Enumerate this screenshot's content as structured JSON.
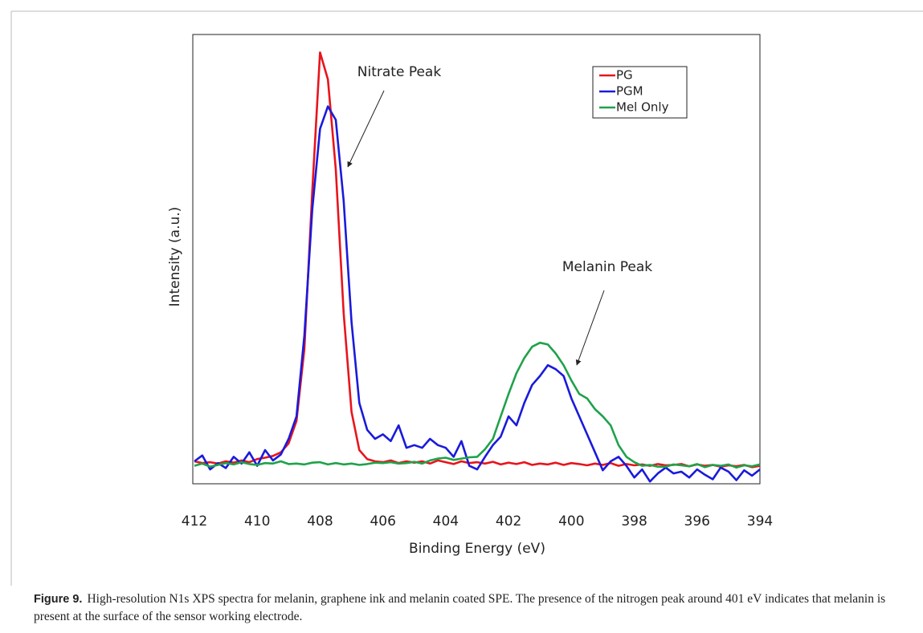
{
  "chart_data": {
    "type": "line",
    "xlabel": "Binding Energy (eV)",
    "ylabel": "Intensity (a.u.)",
    "annotations": [
      "Nitrate Peak",
      "Melanin Peak"
    ],
    "xlim": [
      412,
      394
    ],
    "xticks": [
      412,
      410,
      408,
      406,
      404,
      402,
      400,
      398,
      396,
      394
    ],
    "ylim": [
      0,
      100
    ],
    "legend": "upper right",
    "x": [
      412,
      411.75,
      411.5,
      411.25,
      411,
      410.75,
      410.5,
      410.25,
      410,
      409.75,
      409.5,
      409.25,
      409,
      408.75,
      408.5,
      408.25,
      408,
      407.75,
      407.5,
      407.25,
      407,
      406.75,
      406.5,
      406.25,
      406,
      405.75,
      405.5,
      405.25,
      405,
      404.75,
      404.5,
      404.25,
      404,
      403.75,
      403.5,
      403.25,
      403,
      402.75,
      402.5,
      402.25,
      402,
      401.75,
      401.5,
      401.25,
      401,
      400.75,
      400.5,
      400.25,
      400,
      399.75,
      399.5,
      399.25,
      399,
      398.75,
      398.5,
      398.25,
      398,
      397.75,
      397.5,
      397.25,
      397,
      396.75,
      396.5,
      396.25,
      396,
      395.75,
      395.5,
      395.25,
      395,
      394.75,
      394.5,
      394.25,
      394
    ],
    "series": [
      {
        "name": "PG",
        "color": "#e8141c",
        "values": [
          5,
          4.6,
          4.8,
          4.5,
          5,
          4.7,
          5.2,
          4.8,
          5.5,
          5.8,
          6.2,
          7,
          9,
          14,
          30,
          65,
          96,
          90,
          70,
          38,
          16,
          7.5,
          5.5,
          5,
          4.8,
          5.2,
          4.6,
          5,
          4.7,
          5,
          4.5,
          5.2,
          4.8,
          4.4,
          5,
          4.6,
          4.8,
          4.5,
          4.9,
          4.3,
          4.7,
          4.4,
          4.8,
          4.2,
          4.5,
          4.3,
          4.7,
          4.2,
          4.6,
          4.4,
          4.1,
          4.5,
          4.2,
          4.6,
          4,
          4.4,
          4.1,
          4.3,
          4,
          4.4,
          4.1,
          4.2,
          4.4,
          3.9,
          4.3,
          4,
          4.2,
          3.8,
          4.1,
          3.9,
          4.2,
          3.7,
          4
        ]
      },
      {
        "name": "PGM",
        "color": "#1a1adc",
        "values": [
          5,
          6.3,
          3.2,
          4.6,
          3.5,
          6,
          4.5,
          7,
          4,
          7.5,
          5.2,
          6.5,
          10,
          15,
          33,
          61,
          79,
          84,
          81,
          63,
          36,
          18,
          12,
          10,
          11,
          9.5,
          13,
          8,
          8.6,
          8,
          10,
          8.6,
          8,
          6,
          9.5,
          4,
          3.2,
          6,
          8.6,
          10.5,
          15,
          13,
          18,
          22,
          24,
          26.4,
          25.5,
          24,
          19,
          15,
          11,
          7,
          3,
          5,
          6,
          4,
          1.4,
          3.2,
          0.5,
          2.3,
          3.6,
          2.3,
          2.7,
          1.4,
          3.2,
          2,
          1,
          3.6,
          2.7,
          0.8,
          3,
          1.8,
          3.2
        ]
      },
      {
        "name": "Mel Only",
        "color": "#1fa24a",
        "values": [
          4,
          4.5,
          3.8,
          4.2,
          4.6,
          4.3,
          4.8,
          4.4,
          4.2,
          4.6,
          4.5,
          5,
          4.4,
          4.5,
          4.3,
          4.7,
          4.8,
          4.3,
          4.6,
          4.3,
          4.5,
          4.2,
          4.4,
          4.7,
          4.6,
          4.8,
          4.5,
          4.6,
          4.9,
          4.5,
          5.2,
          5.6,
          5.8,
          5.3,
          5.6,
          5.9,
          6,
          7.7,
          10,
          15,
          20,
          24.6,
          28,
          30.5,
          31.4,
          31,
          29,
          26.4,
          23,
          20,
          19,
          16.6,
          15,
          13,
          8.6,
          6,
          4.8,
          4,
          4.2,
          3.8,
          3.8,
          4.3,
          4.1,
          3.9,
          4.4,
          3.7,
          4.2,
          4,
          4.3,
          3.6,
          4.1,
          3.9,
          4.3
        ]
      }
    ]
  },
  "caption": {
    "label": "Figure 9.",
    "text": "High-resolution N1s XPS spectra for melanin, graphene ink and melanin coated SPE. The presence of the nitrogen peak around 401 eV indicates that melanin is present at the surface of the sensor working electrode."
  }
}
